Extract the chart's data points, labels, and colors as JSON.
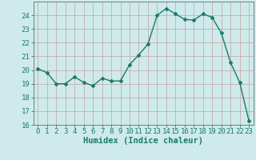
{
  "x": [
    0,
    1,
    2,
    3,
    4,
    5,
    6,
    7,
    8,
    9,
    10,
    11,
    12,
    13,
    14,
    15,
    16,
    17,
    18,
    19,
    20,
    21,
    22,
    23
  ],
  "y": [
    20.1,
    19.8,
    19.0,
    19.0,
    19.5,
    19.1,
    18.85,
    19.4,
    19.2,
    19.2,
    20.4,
    21.1,
    21.9,
    24.0,
    24.5,
    24.1,
    23.7,
    23.65,
    24.1,
    23.85,
    22.7,
    20.55,
    19.1,
    16.3
  ],
  "line_color": "#1a7a6e",
  "marker": "D",
  "marker_size": 2.0,
  "bg_color": "#ceeaea",
  "grid_color": "#c8a0a0",
  "xlabel": "Humidex (Indice chaleur)",
  "ylim": [
    16,
    25
  ],
  "xlim": [
    -0.5,
    23.5
  ],
  "yticks": [
    16,
    17,
    18,
    19,
    20,
    21,
    22,
    23,
    24
  ],
  "xticks": [
    0,
    1,
    2,
    3,
    4,
    5,
    6,
    7,
    8,
    9,
    10,
    11,
    12,
    13,
    14,
    15,
    16,
    17,
    18,
    19,
    20,
    21,
    22,
    23
  ],
  "xlabel_fontsize": 7.5,
  "tick_fontsize": 6.5,
  "line_width": 1.0,
  "spine_color": "#607070"
}
